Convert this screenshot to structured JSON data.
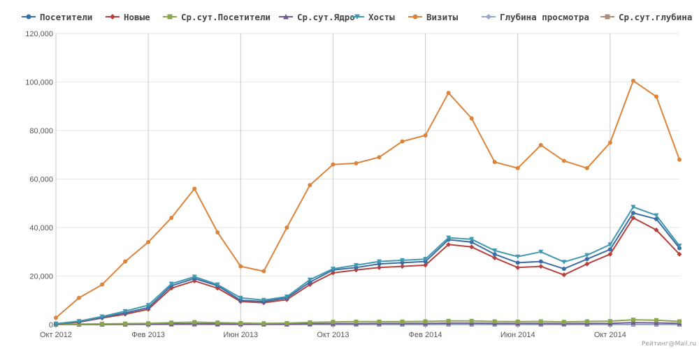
{
  "chart_data": {
    "type": "line",
    "title": "",
    "xlabel": "",
    "ylabel": "",
    "ylim": [
      0,
      120000
    ],
    "y_ticks": [
      0,
      20000,
      40000,
      60000,
      80000,
      100000,
      120000
    ],
    "y_tick_labels": [
      "0",
      "20,000",
      "40,000",
      "60,000",
      "80,000",
      "100,000",
      "120,000"
    ],
    "x": [
      "Окт 2012",
      "Ноя 2012",
      "Дек 2012",
      "Янв 2013",
      "Фев 2013",
      "Мар 2013",
      "Апр 2013",
      "Май 2013",
      "Июн 2013",
      "Июл 2013",
      "Авг 2013",
      "Сен 2013",
      "Окт 2013",
      "Ноя 2013",
      "Дек 2013",
      "Янв 2014",
      "Фев 2014",
      "Мар 2014",
      "Апр 2014",
      "Май 2014",
      "Июн 2014",
      "Июл 2014",
      "Авг 2014",
      "Сен 2014",
      "Окт 2014",
      "Ноя 2014",
      "Дек 2014",
      "Янв 2015"
    ],
    "x_tick_labels": [
      {
        "index": 0,
        "label": "Окт 2012"
      },
      {
        "index": 4,
        "label": "Фев 2013"
      },
      {
        "index": 8,
        "label": "Июн 2013"
      },
      {
        "index": 12,
        "label": "Окт 2013"
      },
      {
        "index": 16,
        "label": "Фев 2014"
      },
      {
        "index": 20,
        "label": "Июн 2014"
      },
      {
        "index": 24,
        "label": "Окт 2014"
      }
    ],
    "legend_position": "top",
    "grid": "vertical at x tick labels, horizontal at y ticks",
    "series": [
      {
        "name": "Посетители",
        "color": "#3a6ea5",
        "marker": "circle",
        "values": [
          300,
          1200,
          3000,
          4800,
          7000,
          16000,
          19000,
          16000,
          10000,
          9500,
          11000,
          17500,
          22500,
          23500,
          25000,
          25500,
          26000,
          35000,
          34000,
          29000,
          25500,
          26000,
          23000,
          27000,
          31000,
          46000,
          43500,
          31500
        ]
      },
      {
        "name": "Новые",
        "color": "#b5413e",
        "marker": "diamond",
        "values": [
          200,
          1000,
          2700,
          4300,
          6300,
          15000,
          18000,
          15000,
          9500,
          9000,
          10300,
          16500,
          21300,
          22500,
          23500,
          24000,
          24500,
          33000,
          32000,
          27500,
          23500,
          24000,
          20500,
          25000,
          29000,
          44000,
          39000,
          29000
        ]
      },
      {
        "name": "Ср.сут.Посетители",
        "color": "#89a54e",
        "marker": "square",
        "values": [
          100,
          200,
          300,
          400,
          500,
          800,
          1000,
          800,
          600,
          500,
          600,
          900,
          1100,
          1200,
          1200,
          1200,
          1300,
          1500,
          1500,
          1300,
          1200,
          1300,
          1100,
          1300,
          1400,
          2000,
          1800,
          1300
        ]
      },
      {
        "name": "Ср.сут.Ядро",
        "color": "#71588f",
        "marker": "triangle",
        "values": [
          30,
          60,
          100,
          150,
          200,
          300,
          350,
          300,
          200,
          200,
          200,
          350,
          400,
          400,
          450,
          450,
          450,
          600,
          600,
          500,
          450,
          450,
          400,
          450,
          500,
          800,
          700,
          500
        ]
      },
      {
        "name": "Хосты",
        "color": "#4198af",
        "marker": "triangle-down",
        "values": [
          350,
          1400,
          3300,
          5500,
          8000,
          16800,
          19700,
          16500,
          11000,
          10100,
          11500,
          18500,
          23000,
          24500,
          26000,
          26500,
          27000,
          35800,
          35200,
          30500,
          28000,
          30000,
          25800,
          28600,
          33000,
          48500,
          45000,
          32500
        ]
      },
      {
        "name": "Визиты",
        "color": "#db843d",
        "marker": "circle",
        "values": [
          2800,
          11000,
          16500,
          26000,
          34000,
          44000,
          56000,
          38000,
          24000,
          22000,
          40000,
          57500,
          66000,
          66500,
          69000,
          75500,
          78000,
          95500,
          85000,
          67000,
          64500,
          74000,
          67500,
          64500,
          75000,
          100500,
          94000,
          68000
        ]
      },
      {
        "name": "Глубина просмотра",
        "color": "#93a9cf",
        "marker": "diamond",
        "values": [
          3,
          3,
          3,
          3,
          3,
          3,
          3,
          3,
          3,
          3,
          3,
          3,
          3,
          3,
          3,
          3,
          3,
          3,
          3,
          3,
          3,
          3,
          3,
          3,
          3,
          3,
          3,
          3
        ]
      },
      {
        "name": "Ср.сут.глубина",
        "color": "#aa8c7a",
        "marker": "square",
        "values": [
          2,
          2,
          2,
          2,
          2,
          2,
          2,
          2,
          2,
          2,
          2,
          2,
          2,
          2,
          2,
          2,
          2,
          2,
          2,
          2,
          2,
          2,
          2,
          2,
          2,
          2,
          2,
          2
        ]
      }
    ]
  },
  "credit": "Рейтинг@Mail.ru"
}
